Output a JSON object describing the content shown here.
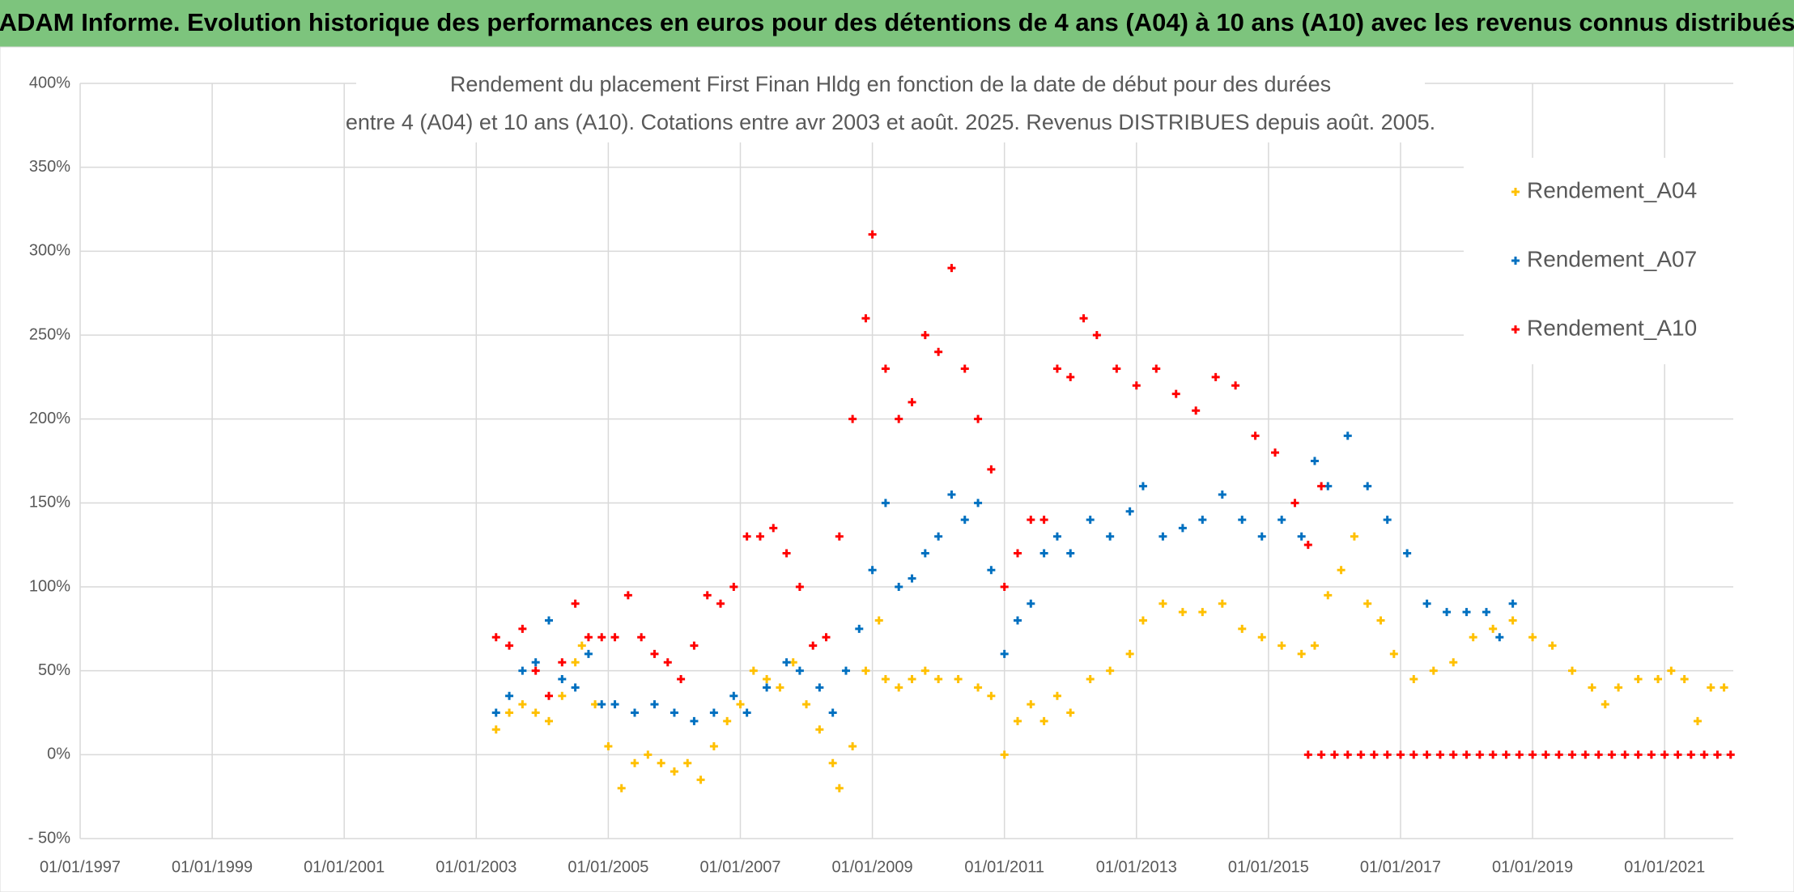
{
  "header": {
    "title": "ADAM Informe. Evolution historique des performances en euros pour des détentions de 4 ans (A04) à 10 ans (A10) avec les revenus connus distribués"
  },
  "chart_data": {
    "type": "scatter",
    "title_lines": [
      "Rendement du placement First Finan Hldg  en fonction de la date de début pour des durées",
      "entre 4 (A04) et 10 ans (A10). Cotations entre avr 2003 et août. 2025. Revenus DISTRIBUES depuis août. 2005."
    ],
    "xlim": [
      1997,
      2022.04
    ],
    "xticks": [
      {
        "value": 1997,
        "label": "01/01/1997"
      },
      {
        "value": 1999,
        "label": "01/01/1999"
      },
      {
        "value": 2001,
        "label": "01/01/2001"
      },
      {
        "value": 2003,
        "label": "01/01/2003"
      },
      {
        "value": 2005,
        "label": "01/01/2005"
      },
      {
        "value": 2007,
        "label": "01/01/2007"
      },
      {
        "value": 2009,
        "label": "01/01/2009"
      },
      {
        "value": 2011,
        "label": "01/01/2011"
      },
      {
        "value": 2013,
        "label": "01/01/2013"
      },
      {
        "value": 2015,
        "label": "01/01/2015"
      },
      {
        "value": 2017,
        "label": "01/01/2017"
      },
      {
        "value": 2019,
        "label": "01/01/2019"
      },
      {
        "value": 2021,
        "label": "01/01/2021"
      }
    ],
    "ylim": [
      -50,
      400
    ],
    "yticks": [
      {
        "value": -50,
        "label": "- 50%"
      },
      {
        "value": 0,
        "label": "0%"
      },
      {
        "value": 50,
        "label": "50%"
      },
      {
        "value": 100,
        "label": "100%"
      },
      {
        "value": 150,
        "label": "150%"
      },
      {
        "value": 200,
        "label": "200%"
      },
      {
        "value": 250,
        "label": "250%"
      },
      {
        "value": 300,
        "label": "300%"
      },
      {
        "value": 350,
        "label": "350%"
      },
      {
        "value": 400,
        "label": "400%"
      }
    ],
    "grid": true,
    "legend": "upper right",
    "series": [
      {
        "name": "Rendement_A04",
        "color": "#ffc000",
        "x": [
          2003.3,
          2003.5,
          2003.7,
          2003.9,
          2004.1,
          2004.3,
          2004.5,
          2004.6,
          2004.8,
          2005.0,
          2005.2,
          2005.4,
          2005.6,
          2005.8,
          2006.0,
          2006.2,
          2006.4,
          2006.6,
          2006.8,
          2007.0,
          2007.2,
          2007.4,
          2007.6,
          2007.8,
          2008.0,
          2008.2,
          2008.4,
          2008.5,
          2008.7,
          2008.9,
          2009.1,
          2009.2,
          2009.4,
          2009.6,
          2009.8,
          2010.0,
          2010.3,
          2010.6,
          2010.8,
          2011.0,
          2011.2,
          2011.4,
          2011.6,
          2011.8,
          2012.0,
          2012.3,
          2012.6,
          2012.9,
          2013.1,
          2013.4,
          2013.7,
          2014.0,
          2014.3,
          2014.6,
          2014.9,
          2015.2,
          2015.5,
          2015.7,
          2015.9,
          2016.1,
          2016.3,
          2016.5,
          2016.7,
          2016.9,
          2017.2,
          2017.5,
          2017.8,
          2018.1,
          2018.4,
          2018.7,
          2019.0,
          2019.3,
          2019.6,
          2019.9,
          2020.1,
          2020.3,
          2020.6,
          2020.9,
          2021.1,
          2021.3,
          2021.5,
          2021.7,
          2021.9
        ],
        "values": [
          15,
          25,
          30,
          25,
          20,
          35,
          55,
          65,
          30,
          5,
          -20,
          -5,
          0,
          -5,
          -10,
          -5,
          -15,
          5,
          20,
          30,
          50,
          45,
          40,
          55,
          30,
          15,
          -5,
          -20,
          5,
          50,
          80,
          45,
          40,
          45,
          50,
          45,
          45,
          40,
          35,
          0,
          20,
          30,
          20,
          35,
          25,
          45,
          50,
          60,
          80,
          90,
          85,
          85,
          90,
          75,
          70,
          65,
          60,
          65,
          95,
          110,
          130,
          90,
          80,
          60,
          45,
          50,
          55,
          70,
          75,
          80,
          70,
          65,
          50,
          40,
          30,
          40,
          45,
          45,
          50,
          45,
          20,
          40,
          40
        ]
      },
      {
        "name": "Rendement_A07",
        "color": "#0070c0",
        "x": [
          2003.3,
          2003.5,
          2003.7,
          2003.9,
          2004.1,
          2004.3,
          2004.5,
          2004.7,
          2004.9,
          2005.1,
          2005.4,
          2005.7,
          2006.0,
          2006.3,
          2006.6,
          2006.9,
          2007.1,
          2007.4,
          2007.7,
          2007.9,
          2008.2,
          2008.4,
          2008.6,
          2008.8,
          2009.0,
          2009.2,
          2009.4,
          2009.6,
          2009.8,
          2010.0,
          2010.2,
          2010.4,
          2010.6,
          2010.8,
          2011.0,
          2011.2,
          2011.4,
          2011.6,
          2011.8,
          2012.0,
          2012.3,
          2012.6,
          2012.9,
          2013.1,
          2013.4,
          2013.7,
          2014.0,
          2014.3,
          2014.6,
          2014.9,
          2015.2,
          2015.5,
          2015.7,
          2015.9,
          2016.2,
          2016.5,
          2016.8,
          2017.1,
          2017.4,
          2017.7,
          2018.0,
          2018.3,
          2018.5,
          2018.7
        ],
        "values": [
          25,
          35,
          50,
          55,
          80,
          45,
          40,
          60,
          30,
          30,
          25,
          30,
          25,
          20,
          25,
          35,
          25,
          40,
          55,
          50,
          40,
          25,
          50,
          75,
          110,
          150,
          100,
          105,
          120,
          130,
          155,
          140,
          150,
          110,
          60,
          80,
          90,
          120,
          130,
          120,
          140,
          130,
          145,
          160,
          130,
          135,
          140,
          155,
          140,
          130,
          140,
          130,
          175,
          160,
          190,
          160,
          140,
          120,
          90,
          85,
          85,
          85,
          70,
          90
        ]
      },
      {
        "name": "Rendement_A10",
        "color": "#ff0000",
        "x": [
          2003.3,
          2003.5,
          2003.7,
          2003.9,
          2004.1,
          2004.3,
          2004.5,
          2004.7,
          2004.9,
          2005.1,
          2005.3,
          2005.5,
          2005.7,
          2005.9,
          2006.1,
          2006.3,
          2006.5,
          2006.7,
          2006.9,
          2007.1,
          2007.3,
          2007.5,
          2007.7,
          2007.9,
          2008.1,
          2008.3,
          2008.5,
          2008.7,
          2008.9,
          2009.0,
          2009.2,
          2009.4,
          2009.6,
          2009.8,
          2010.0,
          2010.2,
          2010.4,
          2010.6,
          2010.8,
          2011.0,
          2011.2,
          2011.4,
          2011.6,
          2011.8,
          2012.0,
          2012.2,
          2012.4,
          2012.7,
          2013.0,
          2013.3,
          2013.6,
          2013.9,
          2014.2,
          2014.5,
          2014.8,
          2015.1,
          2015.4,
          2015.6,
          2015.8,
          2015.6,
          2015.8,
          2016.0,
          2016.2,
          2016.4,
          2016.6,
          2016.8,
          2017.0,
          2017.2,
          2017.4,
          2017.6,
          2017.8,
          2018.0,
          2018.2,
          2018.4,
          2018.6,
          2018.8,
          2019.0,
          2019.2,
          2019.4,
          2019.6,
          2019.8,
          2020.0,
          2020.2,
          2020.4,
          2020.6,
          2020.8,
          2021.0,
          2021.2,
          2021.4,
          2021.6,
          2021.8,
          2022.0
        ],
        "values": [
          70,
          65,
          75,
          50,
          35,
          55,
          90,
          70,
          70,
          70,
          95,
          70,
          60,
          55,
          45,
          65,
          95,
          90,
          100,
          130,
          130,
          135,
          120,
          100,
          65,
          70,
          130,
          200,
          260,
          310,
          230,
          200,
          210,
          250,
          240,
          290,
          230,
          200,
          170,
          100,
          120,
          140,
          140,
          230,
          225,
          260,
          250,
          230,
          220,
          230,
          215,
          205,
          225,
          220,
          190,
          180,
          150,
          125,
          160,
          0,
          0,
          0,
          0,
          0,
          0,
          0,
          0,
          0,
          0,
          0,
          0,
          0,
          0,
          0,
          0,
          0,
          0,
          0,
          0,
          0,
          0,
          0,
          0,
          0,
          0,
          0,
          0,
          0,
          0,
          0,
          0,
          0
        ]
      }
    ]
  }
}
